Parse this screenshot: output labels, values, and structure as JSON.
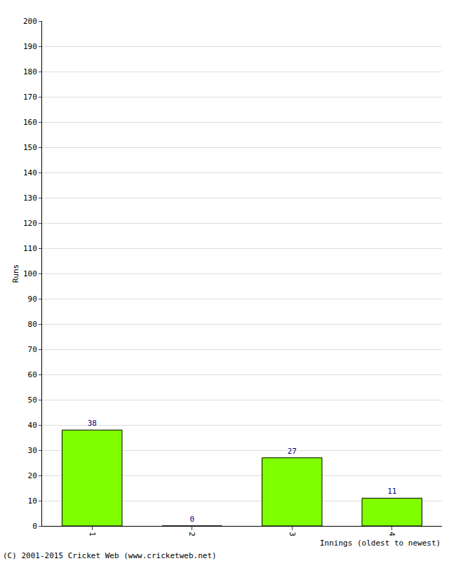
{
  "chart_data": {
    "type": "bar",
    "categories": [
      "1",
      "2",
      "3",
      "4"
    ],
    "values": [
      38,
      0,
      27,
      11
    ],
    "color": "#80ff00",
    "x_label": "Innings (oldest to newest)",
    "y_label": "Runs",
    "ylim": [
      0,
      200
    ],
    "yticks": [
      0,
      10,
      20,
      30,
      40,
      50,
      60,
      70,
      80,
      90,
      100,
      110,
      120,
      130,
      140,
      150,
      160,
      170,
      180,
      190,
      200
    ],
    "grid": true,
    "data_labels": true,
    "annotations": [
      "(C) 2001-2015 Cricket Web (www.cricketweb.net)"
    ]
  }
}
